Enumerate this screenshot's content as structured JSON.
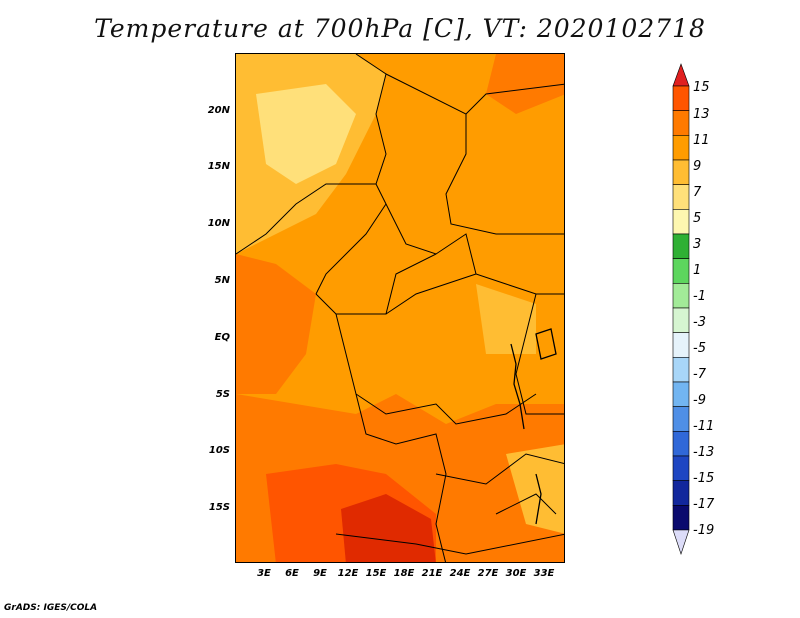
{
  "title": "Temperature at 700hPa [C], VT: 2020102718",
  "credit": "GrADS: IGES/COLA",
  "map": {
    "lat_labels": [
      "20N",
      "15N",
      "10N",
      "5N",
      "EQ",
      "5S",
      "10S",
      "15S"
    ],
    "lon_labels": [
      "3E",
      "6E",
      "9E",
      "12E",
      "15E",
      "18E",
      "21E",
      "24E",
      "27E",
      "30E",
      "33E"
    ]
  },
  "colorbar": {
    "labels": [
      "15",
      "13",
      "11",
      "9",
      "7",
      "5",
      "3",
      "1",
      "-1",
      "-3",
      "-5",
      "-7",
      "-9",
      "-11",
      "-13",
      "-15",
      "-17",
      "-19"
    ],
    "colors": [
      "#ff3000",
      "#ff5500",
      "#ff7a00",
      "#ff9c00",
      "#ffbd33",
      "#ffe07a",
      "#fdf7b0",
      "#2fb034",
      "#5dd65e",
      "#a2eb98",
      "#d6f5d1",
      "#e6f3fb",
      "#a8d6f8",
      "#72b5f1",
      "#4f8fe6",
      "#3068d8",
      "#1e46c2",
      "#12279c",
      "#0a0a6e",
      "#dcdcf8"
    ],
    "top_triangle_color": "#e02020",
    "bottom_triangle_color": "#dcdcf8"
  }
}
